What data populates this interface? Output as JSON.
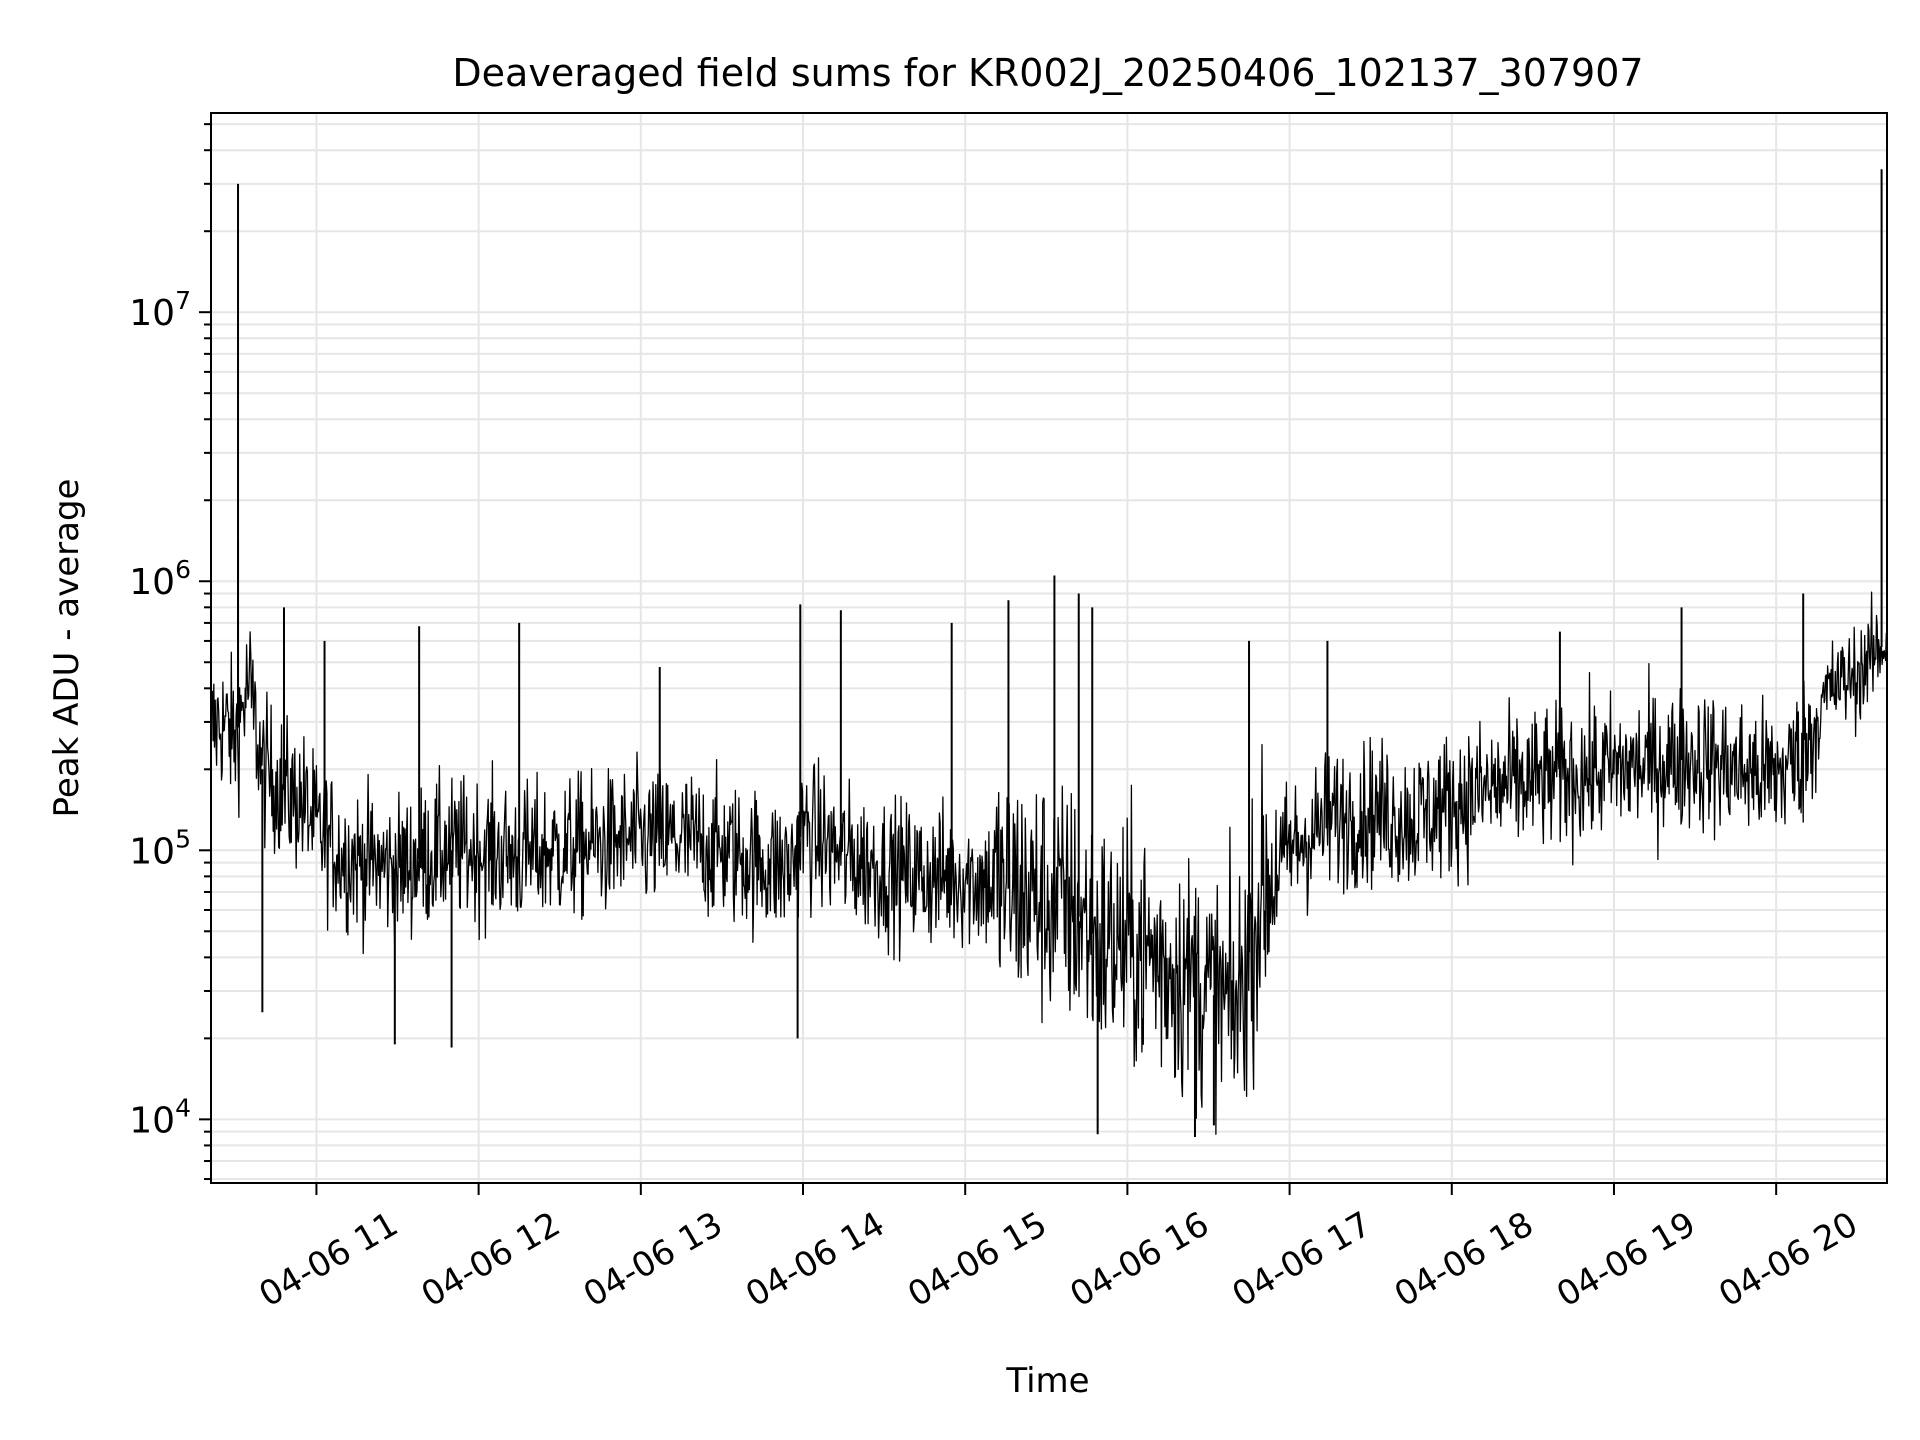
{
  "chart_data": {
    "type": "line",
    "title": "Deaveraged field sums for KR002J_20250406_102137_307907",
    "xlabel": "Time",
    "ylabel": "Peak ADU - average",
    "x_range": [
      "04-06 10:21",
      "04-06 20:41"
    ],
    "yscale": "log",
    "ylim": [
      5800,
      55000000
    ],
    "grid": true,
    "x_tick_labels": [
      "04-06 11",
      "04-06 12",
      "04-06 13",
      "04-06 14",
      "04-06 15",
      "04-06 16",
      "04-06 17",
      "04-06 18",
      "04-06 19",
      "04-06 20"
    ],
    "y_tick_labels": [
      {
        "base": "10",
        "exp": "4",
        "value": 10000
      },
      {
        "base": "10",
        "exp": "5",
        "value": 100000
      },
      {
        "base": "10",
        "exp": "6",
        "value": 1000000
      },
      {
        "base": "10",
        "exp": "7",
        "value": 10000000
      }
    ],
    "series": [
      {
        "color": "#000000",
        "x": [
          "04-06 10:21",
          "04-06 10:25",
          "04-06 10:30",
          "04-06 10:35",
          "04-06 10:40",
          "04-06 10:45",
          "04-06 10:50",
          "04-06 10:55",
          "04-06 11:00",
          "04-06 11:10",
          "04-06 11:20",
          "04-06 11:30",
          "04-06 11:40",
          "04-06 11:50",
          "04-06 12:00",
          "04-06 12:15",
          "04-06 12:30",
          "04-06 12:45",
          "04-06 13:00",
          "04-06 13:15",
          "04-06 13:30",
          "04-06 13:45",
          "04-06 13:55",
          "04-06 14:00",
          "04-06 14:15",
          "04-06 14:30",
          "04-06 14:45",
          "04-06 15:00",
          "04-06 15:10",
          "04-06 15:20",
          "04-06 15:30",
          "04-06 15:40",
          "04-06 15:50",
          "04-06 16:00",
          "04-06 16:10",
          "04-06 16:20",
          "04-06 16:30",
          "04-06 16:40",
          "04-06 16:50",
          "04-06 17:00",
          "04-06 17:15",
          "04-06 17:30",
          "04-06 17:45",
          "04-06 18:00",
          "04-06 18:15",
          "04-06 18:30",
          "04-06 18:45",
          "04-06 19:00",
          "04-06 19:15",
          "04-06 19:30",
          "04-06 19:45",
          "04-06 20:00",
          "04-06 20:10",
          "04-06 20:20",
          "04-06 20:30",
          "04-06 20:41"
        ],
        "y": [
          280000,
          300000,
          260000,
          420000,
          200000,
          180000,
          160000,
          150000,
          120000,
          95000,
          90000,
          85000,
          95000,
          100000,
          100000,
          95000,
          100000,
          105000,
          110000,
          110000,
          100000,
          90000,
          85000,
          120000,
          95000,
          85000,
          80000,
          80000,
          75000,
          70000,
          65000,
          60000,
          45000,
          45000,
          40000,
          35000,
          30000,
          25000,
          70000,
          100000,
          130000,
          140000,
          130000,
          150000,
          170000,
          180000,
          190000,
          200000,
          210000,
          220000,
          200000,
          190000,
          230000,
          400000,
          450000,
          600000
        ],
        "spikes": [
          {
            "x": "04-06 10:31",
            "y": 30000000
          },
          {
            "x": "04-06 10:31",
            "y": 1400000
          },
          {
            "x": "04-06 10:48",
            "y": 800000
          },
          {
            "x": "04-06 11:03",
            "y": 600000
          },
          {
            "x": "04-06 11:38",
            "y": 680000
          },
          {
            "x": "04-06 12:15",
            "y": 700000
          },
          {
            "x": "04-06 13:07",
            "y": 480000
          },
          {
            "x": "04-06 13:59",
            "y": 820000
          },
          {
            "x": "04-06 14:14",
            "y": 780000
          },
          {
            "x": "04-06 14:55",
            "y": 700000
          },
          {
            "x": "04-06 15:16",
            "y": 850000
          },
          {
            "x": "04-06 15:33",
            "y": 1050000
          },
          {
            "x": "04-06 15:42",
            "y": 900000
          },
          {
            "x": "04-06 15:47",
            "y": 800000
          },
          {
            "x": "04-06 16:45",
            "y": 600000
          },
          {
            "x": "04-06 17:14",
            "y": 600000
          },
          {
            "x": "04-06 18:40",
            "y": 650000
          },
          {
            "x": "04-06 19:25",
            "y": 800000
          },
          {
            "x": "04-06 20:10",
            "y": 900000
          },
          {
            "x": "04-06 20:39",
            "y": 34000000
          },
          {
            "x": "04-06 20:41",
            "y": 3000000
          },
          {
            "x": "04-06 11:29",
            "y": 19000
          },
          {
            "x": "04-06 11:50",
            "y": 18500
          },
          {
            "x": "04-06 13:58",
            "y": 20000
          },
          {
            "x": "04-06 15:49",
            "y": 8800
          },
          {
            "x": "04-06 16:25",
            "y": 8600
          },
          {
            "x": "04-06 16:32",
            "y": 9500
          },
          {
            "x": "04-06 10:40",
            "y": 25000
          }
        ]
      }
    ]
  }
}
